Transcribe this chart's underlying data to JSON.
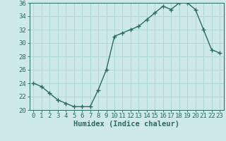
{
  "x": [
    0,
    1,
    2,
    3,
    4,
    5,
    6,
    7,
    8,
    9,
    10,
    11,
    12,
    13,
    14,
    15,
    16,
    17,
    18,
    19,
    20,
    21,
    22,
    23
  ],
  "y": [
    24,
    23.5,
    22.5,
    21.5,
    21,
    20.5,
    20.5,
    20.5,
    23,
    26,
    31,
    31.5,
    32,
    32.5,
    33.5,
    34.5,
    35.5,
    35,
    36,
    36,
    35,
    32,
    29,
    28.5
  ],
  "line_color": "#2d6b5e",
  "marker_color": "#2d6b5e",
  "bg_color": "#ceeae8",
  "grid_color": "#b0d8d4",
  "axis_color": "#2d6b5e",
  "xlabel": "Humidex (Indice chaleur)",
  "ylim": [
    20,
    36
  ],
  "xlim": [
    -0.5,
    23.5
  ],
  "yticks": [
    20,
    22,
    24,
    26,
    28,
    30,
    32,
    34,
    36
  ],
  "xticks": [
    0,
    1,
    2,
    3,
    4,
    5,
    6,
    7,
    8,
    9,
    10,
    11,
    12,
    13,
    14,
    15,
    16,
    17,
    18,
    19,
    20,
    21,
    22,
    23
  ],
  "tick_fontsize": 6.5,
  "label_fontsize": 7.5
}
